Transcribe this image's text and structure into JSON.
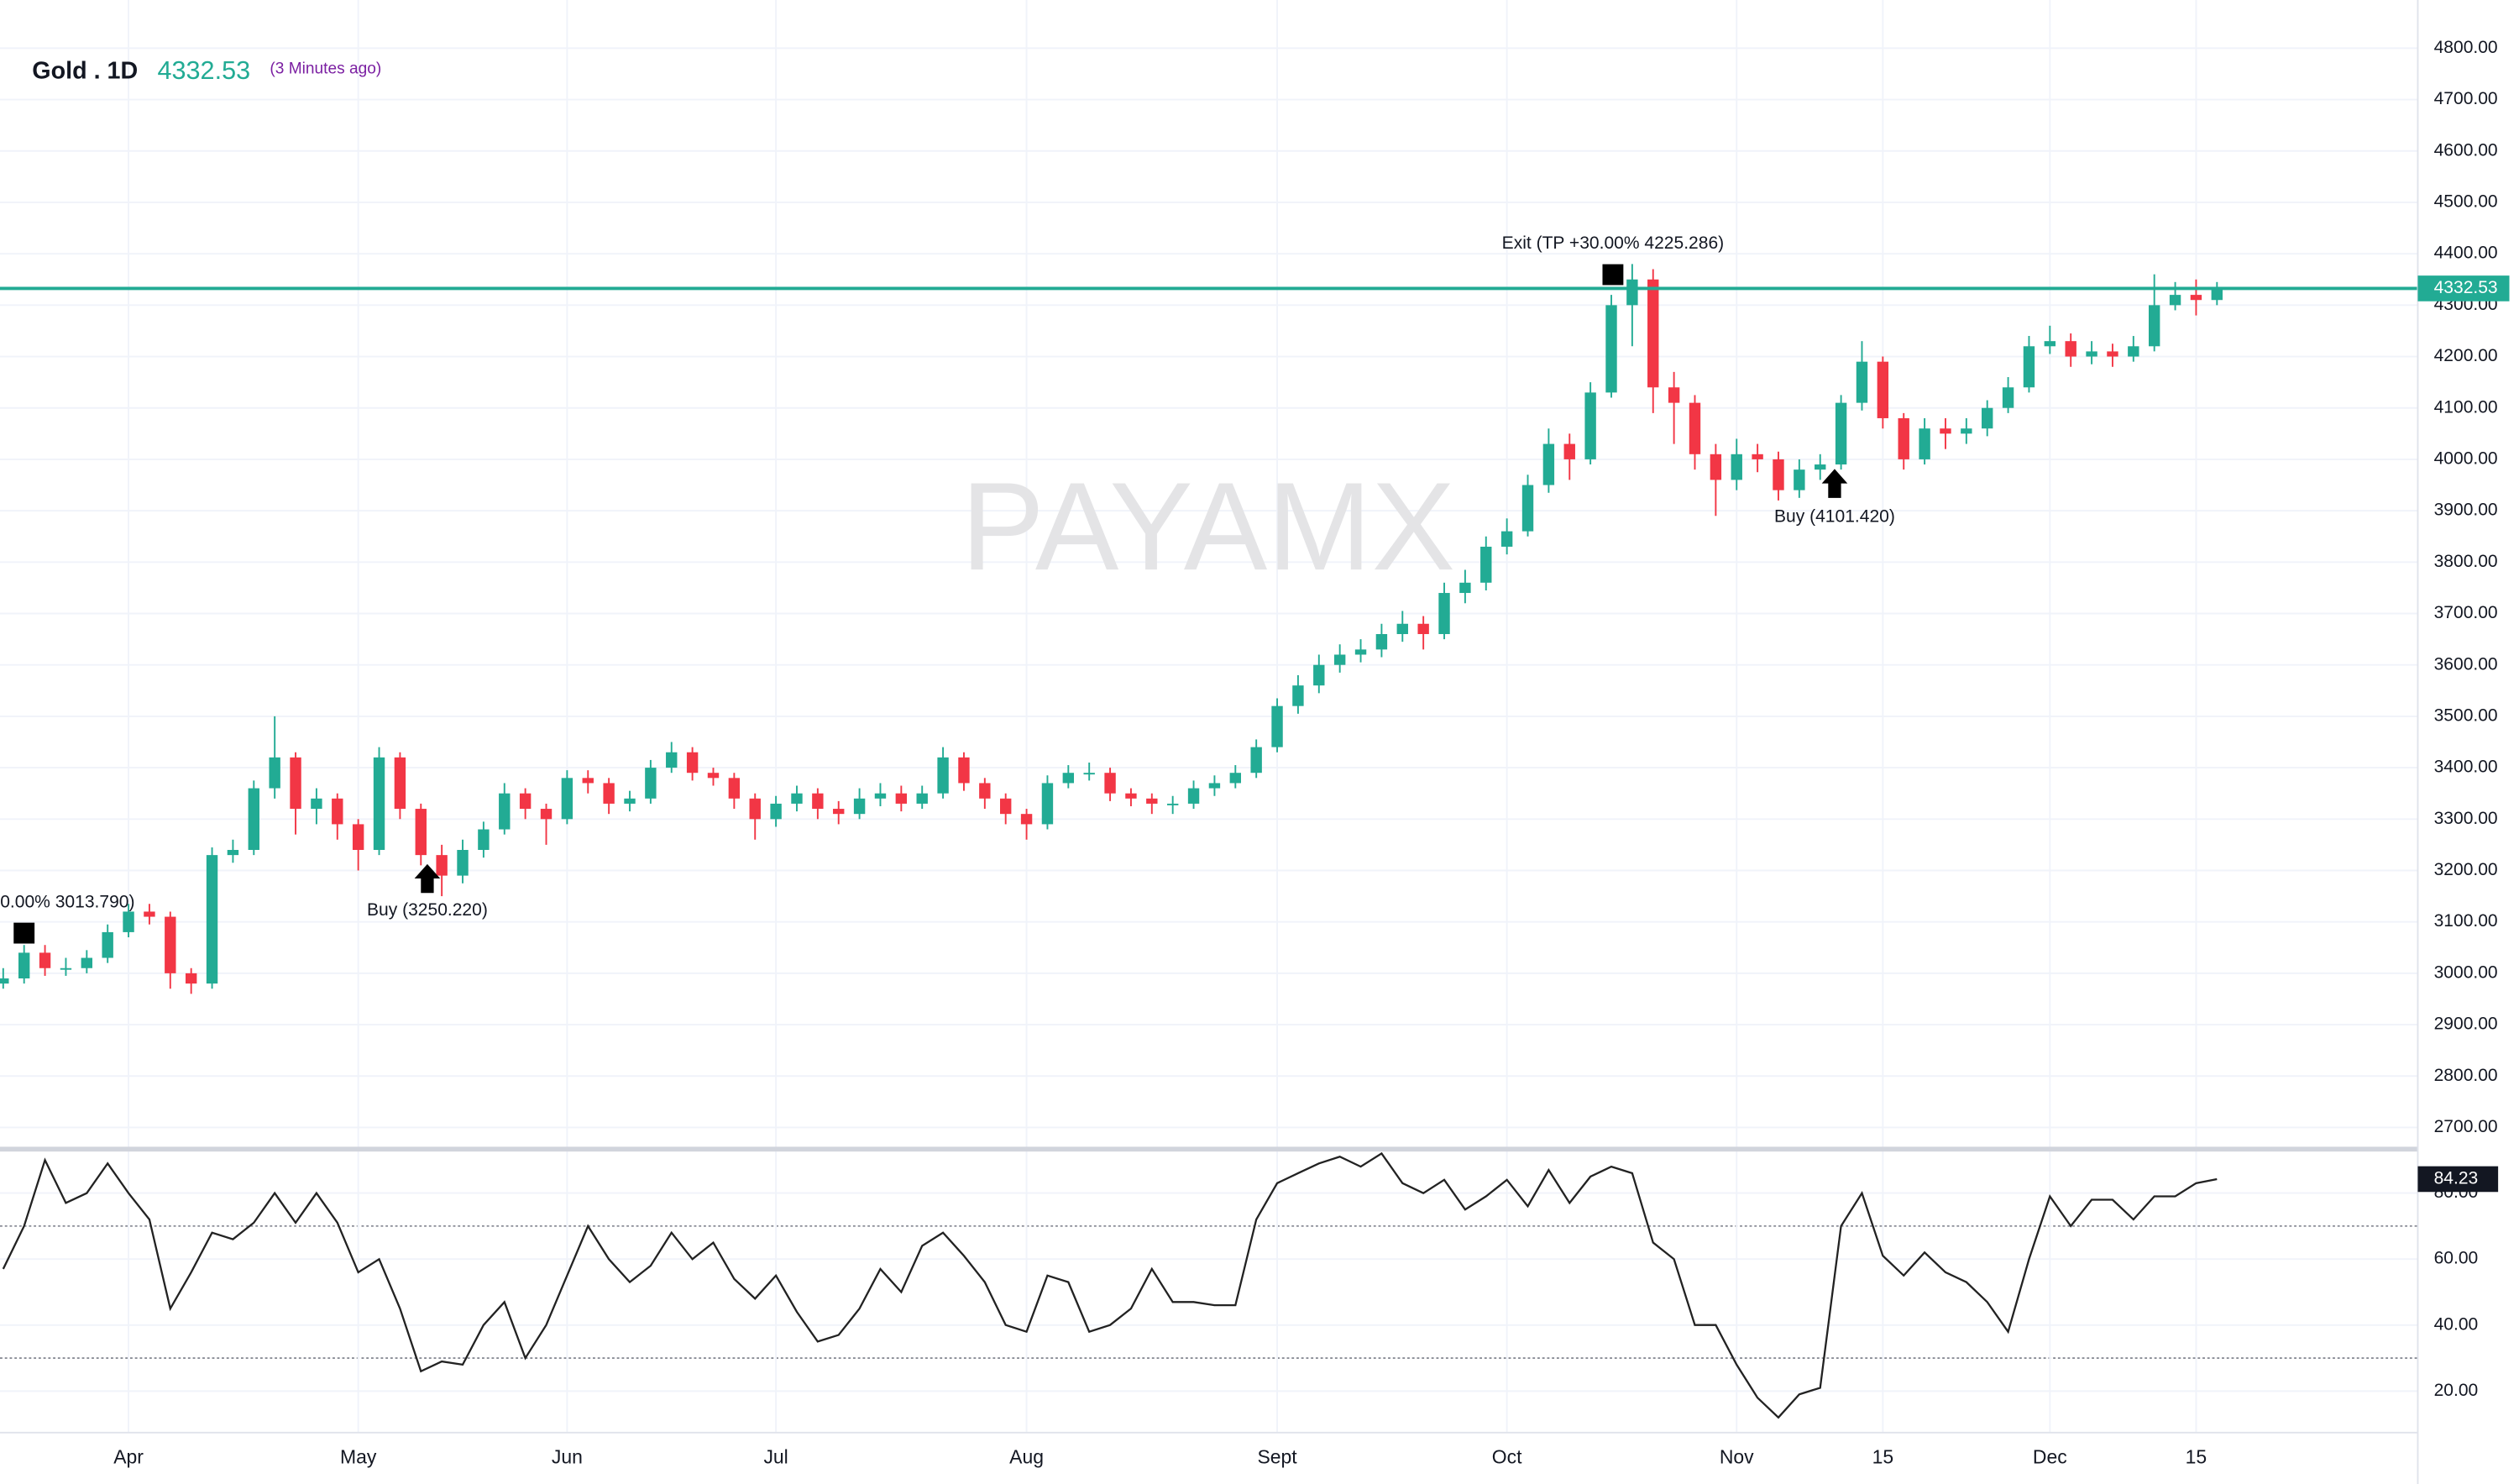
{
  "chart_data": {
    "type": "candlestick",
    "title": "Gold . 1D",
    "last_price": 4332.53,
    "updated": "(3 Minutes ago)",
    "watermark": "PAYAMX",
    "up_color": "#22ab94",
    "down_color": "#f23645",
    "line_color": "#22ab94",
    "grid": true,
    "categories": [
      null,
      null,
      null,
      null,
      null,
      null,
      "Apr",
      null,
      null,
      null,
      null,
      null,
      null,
      null,
      null,
      null,
      null,
      "May",
      null,
      null,
      null,
      null,
      null,
      null,
      null,
      null,
      null,
      "Jun",
      null,
      null,
      null,
      null,
      null,
      null,
      null,
      null,
      null,
      "Jul",
      null,
      null,
      null,
      null,
      null,
      null,
      null,
      null,
      null,
      null,
      null,
      "Aug",
      null,
      null,
      null,
      null,
      null,
      null,
      null,
      null,
      null,
      null,
      null,
      "Sept",
      null,
      null,
      null,
      null,
      null,
      null,
      null,
      null,
      null,
      null,
      "Oct",
      null,
      null,
      null,
      null,
      null,
      null,
      null,
      null,
      null,
      null,
      "Nov",
      null,
      null,
      null,
      null,
      null,
      null,
      "15",
      null,
      null,
      null,
      null,
      null,
      null,
      null,
      "Dec",
      null,
      null,
      null,
      null,
      null,
      null,
      "15",
      null
    ],
    "open": [
      2980,
      2990,
      3040,
      3010,
      3010,
      3030,
      3080,
      3120,
      3110,
      3000,
      2980,
      3230,
      3240,
      3360,
      3420,
      3320,
      3340,
      3290,
      3240,
      3420,
      3320,
      3230,
      3190,
      3240,
      3280,
      3350,
      3320,
      3300,
      3380,
      3370,
      3330,
      3340,
      3400,
      3430,
      3390,
      3380,
      3340,
      3300,
      3330,
      3350,
      3320,
      3310,
      3340,
      3350,
      3330,
      3350,
      3420,
      3370,
      3340,
      3310,
      3290,
      3370,
      3390,
      3390,
      3350,
      3340,
      3330,
      3330,
      3360,
      3370,
      3390,
      3440,
      3520,
      3560,
      3600,
      3620,
      3630,
      3660,
      3680,
      3660,
      3740,
      3760,
      3830,
      3860,
      3950,
      4030,
      4000,
      4130,
      4300,
      4350,
      4140,
      4110,
      4010,
      3960,
      4010,
      4000,
      3940,
      3980,
      3990,
      4110,
      4190,
      4080,
      4000,
      4060,
      4050,
      4060,
      4100,
      4140,
      4220,
      4230,
      4200,
      4210,
      4200,
      4220,
      4300,
      4320,
      4310
    ],
    "high": [
      3010,
      3055,
      3055,
      3030,
      3045,
      3095,
      3135,
      3135,
      3120,
      3010,
      3245,
      3260,
      3375,
      3500,
      3430,
      3360,
      3350,
      3300,
      3440,
      3430,
      3330,
      3250,
      3260,
      3295,
      3370,
      3360,
      3330,
      3395,
      3395,
      3380,
      3355,
      3415,
      3450,
      3440,
      3400,
      3390,
      3350,
      3345,
      3365,
      3360,
      3335,
      3360,
      3370,
      3365,
      3365,
      3440,
      3430,
      3380,
      3350,
      3320,
      3385,
      3405,
      3410,
      3400,
      3360,
      3350,
      3345,
      3375,
      3385,
      3405,
      3455,
      3535,
      3580,
      3620,
      3640,
      3650,
      3680,
      3705,
      3695,
      3760,
      3785,
      3850,
      3885,
      3970,
      4060,
      4050,
      4150,
      4320,
      4380,
      4370,
      4170,
      4125,
      4030,
      4040,
      4030,
      4015,
      4000,
      4010,
      4125,
      4230,
      4200,
      4090,
      4080,
      4080,
      4080,
      4115,
      4160,
      4240,
      4260,
      4245,
      4230,
      4225,
      4240,
      4360,
      4345,
      4350,
      4345
    ],
    "low": [
      2970,
      2980,
      2995,
      2995,
      3000,
      3020,
      3070,
      3095,
      2970,
      2960,
      2970,
      3215,
      3230,
      3340,
      3270,
      3290,
      3260,
      3200,
      3230,
      3300,
      3210,
      3150,
      3175,
      3225,
      3270,
      3300,
      3250,
      3290,
      3350,
      3310,
      3315,
      3330,
      3390,
      3375,
      3365,
      3320,
      3260,
      3285,
      3315,
      3300,
      3290,
      3300,
      3325,
      3315,
      3320,
      3340,
      3355,
      3320,
      3290,
      3260,
      3280,
      3360,
      3375,
      3335,
      3325,
      3310,
      3310,
      3320,
      3345,
      3360,
      3380,
      3430,
      3505,
      3545,
      3585,
      3605,
      3615,
      3645,
      3630,
      3650,
      3720,
      3745,
      3815,
      3850,
      3935,
      3960,
      3990,
      4120,
      4220,
      4090,
      4030,
      3980,
      3890,
      3940,
      3975,
      3920,
      3925,
      3960,
      3980,
      4095,
      4060,
      3980,
      3990,
      4020,
      4030,
      4045,
      4090,
      4130,
      4205,
      4180,
      4185,
      4180,
      4190,
      4210,
      4290,
      4280,
      4300
    ],
    "close": [
      2990,
      3040,
      3010,
      3010,
      3030,
      3080,
      3120,
      3110,
      3000,
      2980,
      3230,
      3240,
      3360,
      3420,
      3320,
      3340,
      3290,
      3240,
      3420,
      3320,
      3230,
      3190,
      3240,
      3280,
      3350,
      3320,
      3300,
      3380,
      3370,
      3330,
      3340,
      3400,
      3430,
      3390,
      3380,
      3340,
      3300,
      3330,
      3350,
      3320,
      3310,
      3340,
      3350,
      3330,
      3350,
      3420,
      3370,
      3340,
      3310,
      3290,
      3370,
      3390,
      3390,
      3350,
      3340,
      3330,
      3330,
      3360,
      3370,
      3390,
      3440,
      3520,
      3560,
      3600,
      3620,
      3630,
      3660,
      3680,
      3660,
      3740,
      3760,
      3830,
      3860,
      3950,
      4030,
      4000,
      4130,
      4300,
      4350,
      4140,
      4110,
      4010,
      3960,
      4010,
      4000,
      3940,
      3980,
      3990,
      4110,
      4190,
      4080,
      4000,
      4060,
      4050,
      4060,
      4100,
      4140,
      4220,
      4230,
      4200,
      4210,
      4200,
      4220,
      4300,
      4320,
      4310,
      4332.53
    ],
    "ylim": [
      2662.5,
      4893.75
    ],
    "yticks": [
      {
        "value": 2700,
        "label": "2700.00"
      },
      {
        "value": 2800,
        "label": "2800.00"
      },
      {
        "value": 2900,
        "label": "2900.00"
      },
      {
        "value": 3000,
        "label": "3000.00"
      },
      {
        "value": 3100,
        "label": "3100.00"
      },
      {
        "value": 3200,
        "label": "3200.00"
      },
      {
        "value": 3300,
        "label": "3300.00"
      },
      {
        "value": 3400,
        "label": "3400.00"
      },
      {
        "value": 3500,
        "label": "3500.00"
      },
      {
        "value": 3600,
        "label": "3600.00"
      },
      {
        "value": 3700,
        "label": "3700.00"
      },
      {
        "value": 3800,
        "label": "3800.00"
      },
      {
        "value": 3900,
        "label": "3900.00"
      },
      {
        "value": 4000,
        "label": "4000.00"
      },
      {
        "value": 4100,
        "label": "4100.00"
      },
      {
        "value": 4200,
        "label": "4200.00"
      },
      {
        "value": 4300,
        "label": "4300.00"
      },
      {
        "value": 4400,
        "label": "4400.00"
      },
      {
        "value": 4500,
        "label": "4500.00"
      },
      {
        "value": 4600,
        "label": "4600.00"
      },
      {
        "value": 4700,
        "label": "4700.00"
      },
      {
        "value": 4800,
        "label": "4800.00"
      }
    ],
    "annotations": [
      {
        "text": "0.00% 3013.790)",
        "kind": "exit"
      },
      {
        "text": "Buy (3250.220)",
        "kind": "buy"
      },
      {
        "text": "Exit (TP +30.00% 4225.286)",
        "kind": "exit"
      },
      {
        "text": "Buy (4101.420)",
        "kind": "buy"
      }
    ],
    "oscillator": {
      "color": "#222222",
      "values": [
        57,
        70,
        90,
        77,
        80,
        89,
        80,
        72,
        45,
        56,
        68,
        66,
        71,
        80,
        71,
        80,
        71,
        56,
        60,
        45,
        26,
        29,
        28,
        40,
        47,
        30,
        40,
        55,
        70,
        60,
        53,
        58,
        68,
        60,
        65,
        54,
        48,
        55,
        44,
        35,
        37,
        45,
        57,
        50,
        64,
        68,
        61,
        53,
        40,
        38,
        55,
        53,
        38,
        40,
        45,
        57,
        47,
        47,
        46,
        46,
        72,
        83,
        86,
        89,
        91,
        88,
        92,
        83,
        80,
        84,
        75,
        79,
        84,
        76,
        87,
        77,
        85,
        88,
        86,
        65,
        60,
        40,
        40,
        28,
        18,
        12,
        19,
        21,
        70,
        80,
        61,
        55,
        62,
        56,
        53,
        47,
        38,
        60,
        79,
        70,
        78,
        78,
        72,
        79,
        79,
        83,
        84.23
      ],
      "ylim": [
        7.42,
        92.58
      ],
      "yticks": [
        {
          "value": 20,
          "label": "20.00"
        },
        {
          "value": 40,
          "label": "40.00"
        },
        {
          "value": 60,
          "label": "60.00"
        },
        {
          "value": 80,
          "label": "80.00"
        }
      ],
      "levels": [
        70,
        30
      ]
    }
  }
}
